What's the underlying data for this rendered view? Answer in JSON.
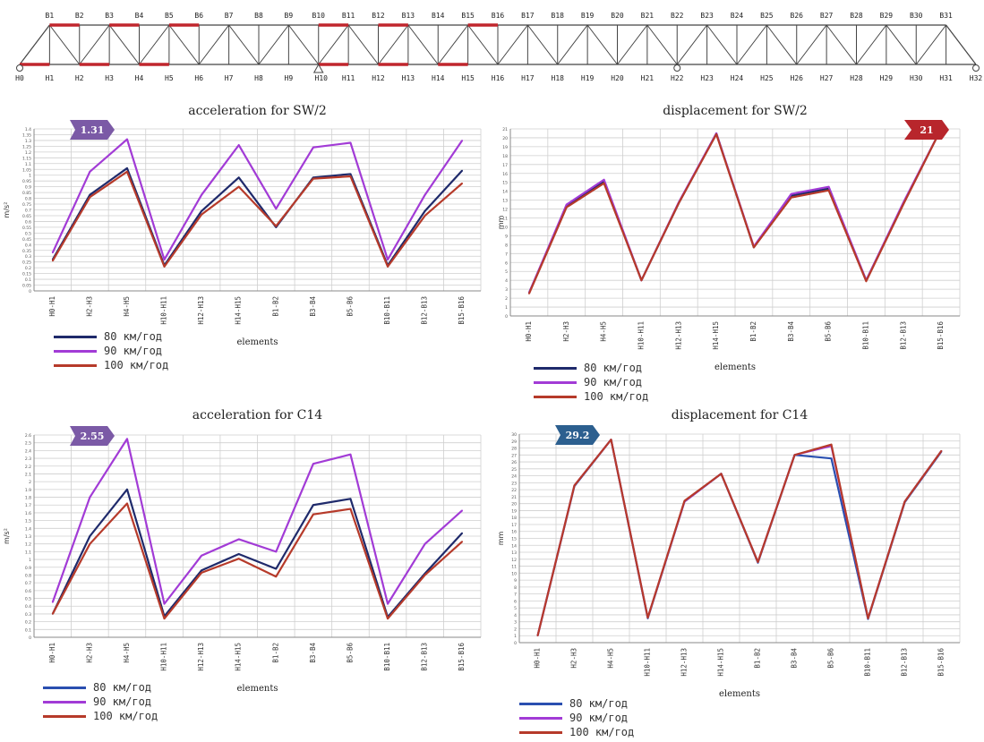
{
  "truss": {
    "top_nodes": [
      "B1",
      "B2",
      "B3",
      "B4",
      "B5",
      "B6",
      "B7",
      "B8",
      "B9",
      "B10",
      "B11",
      "B12",
      "B13",
      "B14",
      "B15",
      "B16",
      "B17",
      "B18",
      "B19",
      "B20",
      "B21",
      "B22",
      "B23",
      "B24",
      "B25",
      "B26",
      "B27",
      "B28",
      "B29",
      "B30",
      "B31"
    ],
    "bottom_nodes": [
      "H0",
      "H1",
      "H2",
      "H3",
      "H4",
      "H5",
      "H6",
      "H7",
      "H8",
      "H9",
      "H10",
      "H11",
      "H12",
      "H13",
      "H14",
      "H15",
      "H16",
      "H17",
      "H18",
      "H19",
      "H20",
      "H21",
      "H22",
      "H23",
      "H24",
      "H25",
      "H26",
      "H27",
      "H28",
      "H29",
      "H30",
      "H31",
      "H32"
    ],
    "highlight_color": "#c0262d"
  },
  "legend": {
    "items": [
      {
        "label": "80 км/год",
        "color": "#1f2a6b"
      },
      {
        "label": "90 км/год",
        "color": "#a23bd6"
      },
      {
        "label": "100 км/год",
        "color": "#b63a2a"
      }
    ]
  },
  "chart_data": [
    {
      "type": "line",
      "title": "acceleration for  SW/2",
      "xlabel": "elements",
      "ylabel": "m/s²",
      "categories": [
        "H0-H1",
        "H2-H3",
        "H4-H5",
        "H10-H11",
        "H12-H13",
        "H14-H15",
        "B1-B2",
        "B3-B4",
        "B5-B6",
        "B10-B11",
        "B12-B13",
        "B15-B16"
      ],
      "ylim": [
        0,
        1.4
      ],
      "yticks": [
        0,
        0.05,
        0.1,
        0.15,
        0.2,
        0.25,
        0.3,
        0.35,
        0.4,
        0.45,
        0.5,
        0.55,
        0.6,
        0.65,
        0.7,
        0.75,
        0.8,
        0.85,
        0.9,
        0.95,
        1,
        1.05,
        1.1,
        1.15,
        1.2,
        1.25,
        1.3,
        1.35,
        1.4
      ],
      "series": [
        {
          "name": "80 км/год",
          "values": [
            0.27,
            0.83,
            1.06,
            0.22,
            0.69,
            0.98,
            0.55,
            0.98,
            1.01,
            0.22,
            0.69,
            1.04
          ]
        },
        {
          "name": "90 км/год",
          "values": [
            0.33,
            1.03,
            1.31,
            0.27,
            0.83,
            1.26,
            0.71,
            1.24,
            1.28,
            0.27,
            0.83,
            1.3
          ]
        },
        {
          "name": "100 км/год",
          "values": [
            0.26,
            0.81,
            1.03,
            0.21,
            0.66,
            0.9,
            0.56,
            0.97,
            0.99,
            0.21,
            0.65,
            0.93
          ]
        }
      ],
      "badge": {
        "text": "1.31",
        "color": "#7b5aa6"
      }
    },
    {
      "type": "line",
      "title": "displacement for  SW/2",
      "xlabel": "elements",
      "ylabel": "mm",
      "categories": [
        "H0-H1",
        "H2-H3",
        "H4-H5",
        "H10-H11",
        "H12-H13",
        "H14-H15",
        "B1-B2",
        "B3-B4",
        "B5-B6",
        "B10-B11",
        "B12-B13",
        "B15-B16"
      ],
      "ylim": [
        0,
        21
      ],
      "yticks": [
        0,
        1,
        2,
        3,
        4,
        5,
        6,
        7,
        8,
        9,
        10,
        11,
        12,
        13,
        14,
        15,
        16,
        17,
        18,
        19,
        20,
        21
      ],
      "series": [
        {
          "name": "80 км/год",
          "values": [
            2.6,
            12.3,
            15.1,
            4.0,
            12.7,
            20.5,
            7.7,
            13.5,
            14.3,
            4.0,
            12.7,
            21.0
          ]
        },
        {
          "name": "90 км/год",
          "values": [
            2.6,
            12.5,
            15.3,
            4.0,
            12.8,
            20.5,
            7.8,
            13.7,
            14.5,
            4.0,
            12.8,
            21.0
          ]
        },
        {
          "name": "100 км/год",
          "values": [
            2.5,
            12.2,
            14.9,
            4.0,
            12.7,
            20.4,
            7.7,
            13.3,
            14.1,
            3.9,
            12.6,
            21.0
          ]
        }
      ],
      "badge": {
        "text": "21",
        "color": "#b8262c"
      }
    },
    {
      "type": "line",
      "title": "acceleration for  C14",
      "xlabel": "elements",
      "ylabel": "m/s²",
      "categories": [
        "H0-H1",
        "H2-H3",
        "H4-H5",
        "H10-H11",
        "H12-H13",
        "H14-H15",
        "B1-B2",
        "B3-B4",
        "B5-B6",
        "B10-B11",
        "B12-B13",
        "B15-B16"
      ],
      "ylim": [
        0,
        2.6
      ],
      "yticks": [
        0,
        0.1,
        0.2,
        0.3,
        0.4,
        0.5,
        0.6,
        0.7,
        0.8,
        0.9,
        1,
        1.1,
        1.2,
        1.3,
        1.4,
        1.5,
        1.6,
        1.7,
        1.8,
        1.9,
        2,
        2.1,
        2.2,
        2.3,
        2.4,
        2.5,
        2.6
      ],
      "series": [
        {
          "name": "80 км/год",
          "values": [
            0.3,
            1.3,
            1.9,
            0.27,
            0.86,
            1.07,
            0.88,
            1.7,
            1.78,
            0.26,
            0.82,
            1.34
          ]
        },
        {
          "name": "90 км/год",
          "values": [
            0.45,
            1.8,
            2.55,
            0.43,
            1.05,
            1.26,
            1.1,
            2.23,
            2.35,
            0.43,
            1.2,
            1.63
          ]
        },
        {
          "name": "100 км/год",
          "values": [
            0.3,
            1.2,
            1.72,
            0.24,
            0.83,
            1.01,
            0.78,
            1.58,
            1.65,
            0.24,
            0.8,
            1.23
          ]
        }
      ],
      "badge": {
        "text": "2.55",
        "color": "#7b5aa6"
      }
    },
    {
      "type": "line",
      "title": "displacement for  C14",
      "xlabel": "elements",
      "ylabel": "mm",
      "categories": [
        "H0-H1",
        "H2-H3",
        "H4-H5",
        "H10-H11",
        "H12-H13",
        "H14-H15",
        "B1-B2",
        "B3-B4",
        "B5-B6",
        "B10-B11",
        "B12-B13",
        "B15-B16"
      ],
      "ylim": [
        0,
        30
      ],
      "yticks": [
        0,
        1,
        2,
        3,
        4,
        5,
        6,
        7,
        8,
        9,
        10,
        11,
        12,
        13,
        14,
        15,
        16,
        17,
        18,
        19,
        20,
        21,
        22,
        23,
        24,
        25,
        26,
        27,
        28,
        29,
        30
      ],
      "series": [
        {
          "name": "80 км/год",
          "values": [
            1.0,
            22.5,
            29.2,
            3.5,
            20.3,
            24.3,
            11.5,
            27.0,
            26.5,
            3.4,
            20.2,
            27.5
          ]
        },
        {
          "name": "90 км/год",
          "values": [
            1.0,
            22.6,
            29.2,
            3.6,
            20.3,
            24.3,
            11.6,
            27.0,
            28.3,
            3.5,
            20.3,
            27.6
          ]
        },
        {
          "name": "100 км/год",
          "values": [
            1.0,
            22.6,
            29.2,
            3.6,
            20.4,
            24.3,
            11.6,
            27.0,
            28.5,
            3.5,
            20.3,
            27.6
          ]
        }
      ],
      "badge": {
        "text": "29.2",
        "color": "#2c5f8f"
      }
    }
  ]
}
